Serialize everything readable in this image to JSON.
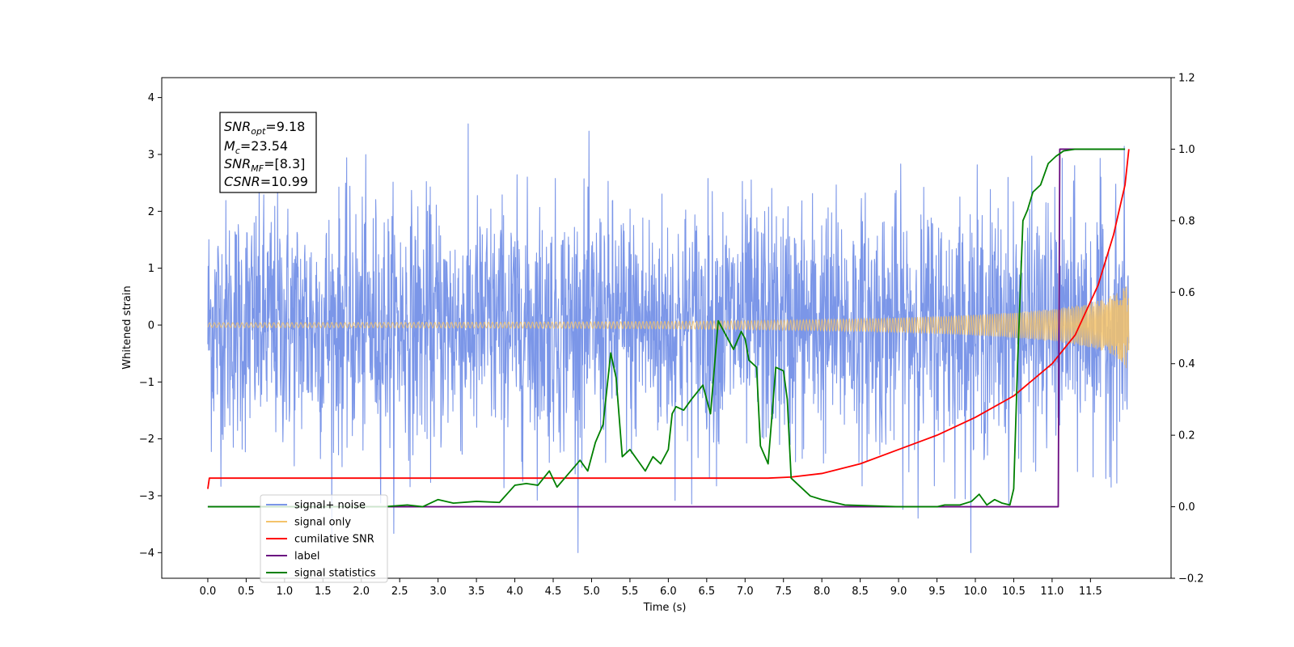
{
  "chart_data": {
    "type": "line",
    "xlabel": "Time (s)",
    "ylabel": "Whitened strain",
    "xlim": [
      -0.6,
      12.55
    ],
    "ylim": [
      -4.45,
      4.35
    ],
    "y2lim": [
      -0.2,
      1.2
    ],
    "x_ticks": [
      0.0,
      0.5,
      1.0,
      1.5,
      2.0,
      2.5,
      3.0,
      3.5,
      4.0,
      4.5,
      5.0,
      5.5,
      6.0,
      6.5,
      7.0,
      7.5,
      8.0,
      8.5,
      9.0,
      9.5,
      10.0,
      10.5,
      11.0,
      11.5
    ],
    "x_tick_labels": [
      "0.0",
      "0.5",
      "1.0",
      "1.5",
      "2.0",
      "2.5",
      "3.0",
      "3.5",
      "4.0",
      "4.5",
      "5.0",
      "5.5",
      "6.0",
      "6.5",
      "7.0",
      "7.5",
      "8.0",
      "8.5",
      "9.0",
      "9.5",
      "10.0",
      "10.5",
      "11.0",
      "11.5"
    ],
    "y_ticks": [
      4,
      3,
      2,
      1,
      0,
      -1,
      -2,
      -3,
      -4
    ],
    "y_tick_labels": [
      "4",
      "3",
      "2",
      "1",
      "0",
      "−1",
      "−2",
      "−3",
      "−4"
    ],
    "y2_ticks": [
      1.2,
      1.0,
      0.8,
      0.6,
      0.4,
      0.2,
      0.0,
      -0.2
    ],
    "y2_tick_labels": [
      "1.2",
      "1.0",
      "0.8",
      "0.6",
      "0.4",
      "0.2",
      "0.0",
      "−0.2"
    ],
    "annotation": {
      "lines": [
        {
          "base": "SNR",
          "sub": "opt",
          "rest": "=9.18"
        },
        {
          "base": "M",
          "sub": "c",
          "rest": "=23.54"
        },
        {
          "base": "SNR",
          "sub": "MF",
          "rest": "=[8.3]"
        },
        {
          "base": "CSNR",
          "sub": "",
          "rest": "=10.99"
        }
      ]
    },
    "series": [
      {
        "name": "signal+ noise",
        "color": "#7b96e8",
        "axis": "left",
        "kind": "noise",
        "x_range": [
          0.0,
          12.0
        ],
        "envelope_typical": 1.5,
        "envelope_peak": 4.0
      },
      {
        "name": "signal only",
        "color": "#f4c36a",
        "axis": "left",
        "kind": "chirp",
        "x_range": [
          0.0,
          12.0
        ],
        "amplitude_end": 0.9,
        "amplitude_at_10": 0.2,
        "amplitude_at_8": 0.05
      },
      {
        "name": "cumilative SNR",
        "color": "#ff0000",
        "axis": "right",
        "x": [
          0.0,
          0.02,
          0.5,
          2.0,
          4.0,
          6.0,
          7.0,
          7.3,
          7.6,
          8.0,
          8.5,
          9.0,
          9.5,
          10.0,
          10.5,
          11.0,
          11.3,
          11.6,
          11.8,
          11.95,
          12.0
        ],
        "y": [
          0.05,
          0.08,
          0.08,
          0.08,
          0.08,
          0.08,
          0.08,
          0.08,
          0.083,
          0.093,
          0.12,
          0.16,
          0.2,
          0.25,
          0.31,
          0.4,
          0.48,
          0.62,
          0.76,
          0.9,
          1.0
        ]
      },
      {
        "name": "label",
        "color": "#6a0a80",
        "axis": "right",
        "x": [
          0.0,
          11.08,
          11.1,
          11.95
        ],
        "y": [
          0.0,
          0.0,
          1.0,
          1.0
        ]
      },
      {
        "name": "signal statistics",
        "color": "#008000",
        "axis": "right",
        "x": [
          0.0,
          2.0,
          2.3,
          2.6,
          2.8,
          3.0,
          3.2,
          3.5,
          3.8,
          4.0,
          4.15,
          4.3,
          4.45,
          4.55,
          4.65,
          4.85,
          4.95,
          5.05,
          5.15,
          5.25,
          5.32,
          5.4,
          5.5,
          5.6,
          5.7,
          5.8,
          5.9,
          6.0,
          6.05,
          6.1,
          6.2,
          6.3,
          6.45,
          6.55,
          6.65,
          6.75,
          6.85,
          6.95,
          7.0,
          7.05,
          7.15,
          7.2,
          7.3,
          7.4,
          7.5,
          7.55,
          7.6,
          7.7,
          7.85,
          8.0,
          8.3,
          9.0,
          9.5,
          9.6,
          9.8,
          9.95,
          10.05,
          10.15,
          10.25,
          10.35,
          10.45,
          10.5,
          10.55,
          10.62,
          10.68,
          10.75,
          10.85,
          10.95,
          11.05,
          11.15,
          11.3,
          11.95
        ],
        "y": [
          0.0,
          0.0,
          0.0,
          0.005,
          0.0,
          0.02,
          0.01,
          0.015,
          0.012,
          0.06,
          0.065,
          0.06,
          0.1,
          0.055,
          0.08,
          0.13,
          0.1,
          0.18,
          0.23,
          0.43,
          0.36,
          0.14,
          0.16,
          0.13,
          0.1,
          0.14,
          0.12,
          0.16,
          0.26,
          0.28,
          0.27,
          0.3,
          0.34,
          0.26,
          0.52,
          0.48,
          0.44,
          0.49,
          0.47,
          0.41,
          0.39,
          0.17,
          0.12,
          0.39,
          0.38,
          0.3,
          0.08,
          0.06,
          0.03,
          0.02,
          0.005,
          0.0,
          0.0,
          0.005,
          0.005,
          0.015,
          0.035,
          0.005,
          0.02,
          0.01,
          0.005,
          0.05,
          0.4,
          0.8,
          0.83,
          0.88,
          0.9,
          0.96,
          0.98,
          0.995,
          1.0,
          1.0
        ]
      }
    ],
    "legend": {
      "placement": "lower-left",
      "entries": [
        {
          "label": "signal+ noise",
          "color": "#7b96e8"
        },
        {
          "label": "signal only",
          "color": "#f4c36a"
        },
        {
          "label": "cumilative SNR",
          "color": "#ff0000"
        },
        {
          "label": "label",
          "color": "#6a0a80"
        },
        {
          "label": "signal statistics",
          "color": "#008000"
        }
      ]
    }
  }
}
